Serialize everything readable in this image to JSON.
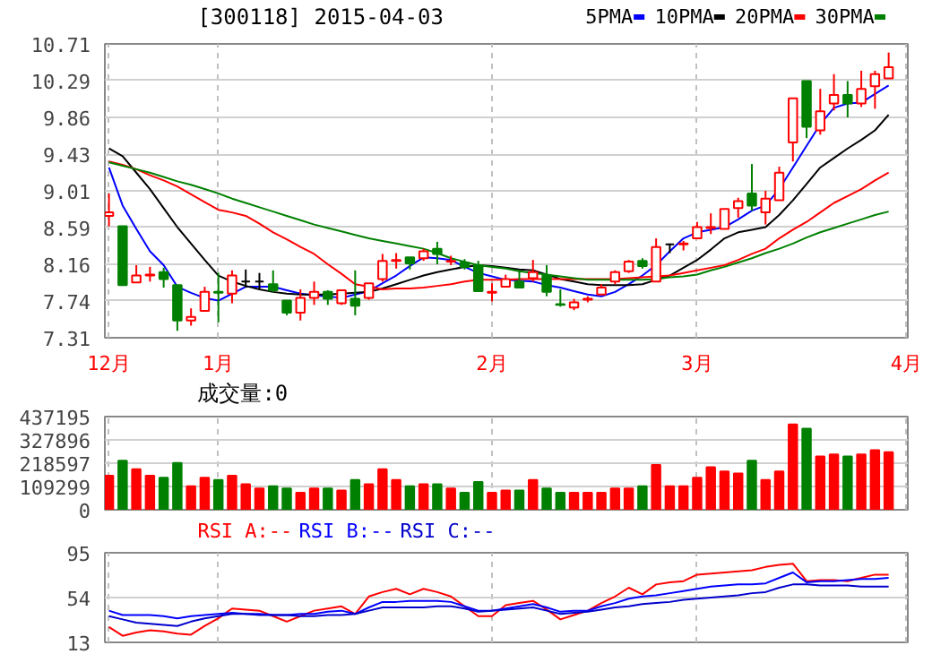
{
  "chart_data": [
    {
      "type": "candlestick",
      "title": "[300118] 2015-04-03",
      "legend": "top right",
      "grid": true,
      "annotations": [
        "4月"
      ],
      "categories": [
        "12月",
        null,
        null,
        null,
        null,
        null,
        null,
        null,
        "1月",
        null,
        null,
        null,
        null,
        null,
        null,
        null,
        null,
        null,
        null,
        null,
        null,
        null,
        null,
        null,
        null,
        null,
        null,
        null,
        "2月",
        null,
        null,
        null,
        null,
        null,
        null,
        null,
        null,
        null,
        null,
        null,
        null,
        null,
        null,
        "3月",
        null,
        null,
        null,
        null,
        null,
        null,
        null,
        null,
        null,
        null,
        null,
        null,
        null,
        null
      ],
      "ohlc": [
        [
          8.72,
          8.98,
          8.6,
          8.76
        ],
        [
          8.6,
          8.6,
          7.92,
          7.92
        ],
        [
          7.95,
          8.15,
          7.95,
          8.03
        ],
        [
          8.03,
          8.13,
          7.96,
          8.04
        ],
        [
          8.07,
          8.12,
          7.89,
          7.99
        ],
        [
          7.92,
          7.92,
          7.39,
          7.51
        ],
        [
          7.51,
          7.65,
          7.45,
          7.55
        ],
        [
          7.62,
          7.9,
          7.61,
          7.84
        ],
        [
          7.84,
          8.06,
          7.49,
          7.83
        ],
        [
          7.82,
          8.09,
          7.71,
          8.03
        ],
        [
          7.96,
          8.1,
          7.89,
          7.96
        ],
        [
          7.96,
          8.06,
          7.87,
          7.96
        ],
        [
          7.93,
          8.09,
          7.84,
          7.86
        ],
        [
          7.74,
          7.74,
          7.57,
          7.6
        ],
        [
          7.6,
          7.87,
          7.51,
          7.77
        ],
        [
          7.77,
          7.96,
          7.69,
          7.84
        ],
        [
          7.84,
          7.86,
          7.69,
          7.76
        ],
        [
          7.71,
          7.87,
          7.69,
          7.86
        ],
        [
          7.76,
          8.09,
          7.57,
          7.68
        ],
        [
          7.77,
          7.94,
          7.75,
          7.94
        ],
        [
          7.99,
          8.28,
          7.96,
          8.2
        ],
        [
          8.2,
          8.29,
          8.11,
          8.21
        ],
        [
          8.24,
          8.24,
          8.1,
          8.17
        ],
        [
          8.23,
          8.34,
          8.2,
          8.31
        ],
        [
          8.34,
          8.42,
          8.16,
          8.28
        ],
        [
          8.19,
          8.26,
          8.15,
          8.2
        ],
        [
          8.18,
          8.22,
          8.1,
          8.13
        ],
        [
          8.15,
          8.2,
          7.85,
          7.85
        ],
        [
          7.83,
          7.94,
          7.73,
          7.84
        ],
        [
          7.9,
          8.04,
          7.89,
          7.99
        ],
        [
          7.96,
          8.09,
          7.88,
          7.89
        ],
        [
          8.0,
          8.21,
          7.96,
          8.07
        ],
        [
          8.03,
          8.15,
          7.79,
          7.84
        ],
        [
          7.7,
          7.87,
          7.67,
          7.69
        ],
        [
          7.66,
          7.76,
          7.63,
          7.72
        ],
        [
          7.75,
          7.79,
          7.72,
          7.76
        ],
        [
          7.81,
          7.93,
          7.81,
          7.89
        ],
        [
          7.96,
          8.09,
          7.93,
          8.07
        ],
        [
          8.08,
          8.21,
          8.06,
          8.19
        ],
        [
          8.2,
          8.23,
          8.11,
          8.14
        ],
        [
          7.96,
          8.46,
          7.96,
          8.36
        ],
        [
          8.39,
          8.4,
          8.29,
          8.39
        ],
        [
          8.39,
          8.43,
          8.32,
          8.4
        ],
        [
          8.46,
          8.65,
          8.46,
          8.59
        ],
        [
          8.58,
          8.75,
          8.51,
          8.59
        ],
        [
          8.57,
          8.8,
          8.57,
          8.8
        ],
        [
          8.81,
          8.93,
          8.7,
          8.89
        ],
        [
          8.98,
          9.32,
          8.78,
          8.84
        ],
        [
          8.76,
          9.01,
          8.62,
          8.92
        ],
        [
          8.9,
          9.29,
          8.9,
          9.22
        ],
        [
          9.57,
          10.08,
          9.35,
          10.08
        ],
        [
          10.28,
          10.28,
          9.62,
          9.75
        ],
        [
          9.71,
          10.19,
          9.66,
          9.93
        ],
        [
          10.02,
          10.36,
          9.94,
          10.12
        ],
        [
          10.12,
          10.28,
          9.86,
          10.02
        ],
        [
          10.02,
          10.4,
          9.98,
          10.19
        ],
        [
          10.22,
          10.4,
          9.96,
          10.36
        ],
        [
          10.31,
          10.61,
          10.31,
          10.44
        ]
      ],
      "colors": [
        "#ff0000",
        "#008000",
        "#ff0000",
        "#ff0000",
        "#008000",
        "#008000",
        "#ff0000",
        "#ff0000",
        "#008000",
        "#ff0000",
        "#000000",
        "#000000",
        "#008000",
        "#008000",
        "#ff0000",
        "#ff0000",
        "#008000",
        "#ff0000",
        "#008000",
        "#ff0000",
        "#ff0000",
        "#ff0000",
        "#008000",
        "#ff0000",
        "#008000",
        "#ff0000",
        "#008000",
        "#008000",
        "#ff0000",
        "#ff0000",
        "#008000",
        "#ff0000",
        "#008000",
        "#008000",
        "#ff0000",
        "#ff0000",
        "#ff0000",
        "#ff0000",
        "#ff0000",
        "#008000",
        "#ff0000",
        "#000000",
        "#ff0000",
        "#ff0000",
        "#ff0000",
        "#ff0000",
        "#ff0000",
        "#008000",
        "#ff0000",
        "#ff0000",
        "#ff0000",
        "#008000",
        "#ff0000",
        "#ff0000",
        "#008000",
        "#ff0000",
        "#ff0000",
        "#ff0000"
      ],
      "series": [
        {
          "name": "5PMA",
          "color": "#0000ff",
          "type": "line",
          "values": [
            9.28,
            8.84,
            8.57,
            8.31,
            8.15,
            7.9,
            7.83,
            7.77,
            7.74,
            7.82,
            7.9,
            7.9,
            7.9,
            7.86,
            7.82,
            7.8,
            7.79,
            7.77,
            7.81,
            7.85,
            7.94,
            8.03,
            8.14,
            8.24,
            8.23,
            8.21,
            8.13,
            8.06,
            8.02,
            7.98,
            7.97,
            7.96,
            7.92,
            7.89,
            7.85,
            7.81,
            7.79,
            7.84,
            7.93,
            8.03,
            8.15,
            8.31,
            8.46,
            8.53,
            8.56,
            8.59,
            8.68,
            8.78,
            8.84,
            9.03,
            9.28,
            9.53,
            9.78,
            9.97,
            10.02,
            10.03,
            10.13,
            10.23
          ]
        },
        {
          "name": "10PMA",
          "color": "#000000",
          "type": "line",
          "values": [
            9.5,
            9.41,
            9.22,
            9.03,
            8.81,
            8.59,
            8.4,
            8.21,
            8.03,
            7.96,
            7.91,
            7.87,
            7.84,
            7.82,
            7.81,
            7.81,
            7.81,
            7.82,
            7.83,
            7.84,
            7.88,
            7.93,
            7.98,
            8.03,
            8.07,
            8.1,
            8.13,
            8.15,
            8.14,
            8.12,
            8.1,
            8.09,
            8.04,
            7.99,
            7.96,
            7.93,
            7.92,
            7.92,
            7.92,
            7.93,
            7.98,
            8.03,
            8.12,
            8.21,
            8.33,
            8.46,
            8.53,
            8.56,
            8.59,
            8.73,
            8.9,
            9.09,
            9.28,
            9.39,
            9.5,
            9.6,
            9.71,
            9.89
          ]
        },
        {
          "name": "20PMA",
          "color": "#ff0000",
          "type": "line",
          "values": [
            9.35,
            9.31,
            9.26,
            9.19,
            9.13,
            9.06,
            8.97,
            8.88,
            8.79,
            8.76,
            8.72,
            8.63,
            8.53,
            8.45,
            8.36,
            8.28,
            8.16,
            8.05,
            7.93,
            7.9,
            7.87,
            7.88,
            7.88,
            7.89,
            7.91,
            7.93,
            7.96,
            7.98,
            7.98,
            7.98,
            7.99,
            7.99,
            7.99,
            7.99,
            7.99,
            7.99,
            7.99,
            7.99,
            8.0,
            8.01,
            8.02,
            8.03,
            8.06,
            8.09,
            8.12,
            8.15,
            8.21,
            8.28,
            8.34,
            8.46,
            8.56,
            8.65,
            8.76,
            8.87,
            8.95,
            9.03,
            9.13,
            9.22
          ]
        },
        {
          "name": "30PMA",
          "color": "#008000",
          "type": "line",
          "values": [
            9.34,
            9.3,
            9.26,
            9.22,
            9.17,
            9.12,
            9.08,
            9.03,
            8.98,
            8.92,
            8.87,
            8.82,
            8.77,
            8.72,
            8.67,
            8.62,
            8.58,
            8.54,
            8.5,
            8.46,
            8.43,
            8.4,
            8.37,
            8.34,
            8.29,
            8.23,
            8.19,
            8.15,
            8.13,
            8.11,
            8.08,
            8.06,
            8.04,
            8.02,
            8.0,
            7.98,
            7.98,
            7.98,
            7.98,
            7.98,
            7.99,
            8.01,
            8.02,
            8.04,
            8.09,
            8.13,
            8.18,
            8.23,
            8.29,
            8.34,
            8.4,
            8.47,
            8.53,
            8.58,
            8.63,
            8.68,
            8.73,
            8.77
          ]
        }
      ],
      "ylim": [
        7.31,
        10.71
      ],
      "yticks": [
        7.31,
        7.74,
        8.16,
        8.59,
        9.01,
        9.43,
        9.86,
        10.29,
        10.71
      ]
    },
    {
      "type": "bar",
      "title": "成交量:0",
      "grid": true,
      "tick_labels": "y",
      "categories": [
        null,
        null,
        null,
        null,
        null,
        null,
        null,
        null,
        null,
        null,
        null,
        null,
        null,
        null,
        null,
        null,
        null,
        null,
        null,
        null,
        null,
        null,
        null,
        null,
        null,
        null,
        null,
        null,
        null,
        null,
        null,
        null,
        null,
        null,
        null,
        null,
        null,
        null,
        null,
        null,
        null,
        null,
        null,
        null,
        null,
        null,
        null,
        null,
        null,
        null,
        null,
        null,
        null,
        null,
        null,
        null,
        null,
        null
      ],
      "values": [
        160000,
        230000,
        190000,
        160000,
        150000,
        220000,
        110000,
        150000,
        140000,
        160000,
        120000,
        100000,
        110000,
        100000,
        80000,
        100000,
        100000,
        90000,
        140000,
        120000,
        190000,
        140000,
        110000,
        120000,
        120000,
        100000,
        80000,
        130000,
        80000,
        90000,
        90000,
        140000,
        100000,
        80000,
        80000,
        80000,
        80000,
        100000,
        100000,
        110000,
        210000,
        110000,
        110000,
        150000,
        200000,
        180000,
        170000,
        230000,
        140000,
        180000,
        400000,
        380000,
        250000,
        260000,
        250000,
        260000,
        280000,
        270000
      ],
      "colors": [
        "#ff0000",
        "#008000",
        "#ff0000",
        "#ff0000",
        "#008000",
        "#008000",
        "#ff0000",
        "#ff0000",
        "#008000",
        "#ff0000",
        "#ff0000",
        "#ff0000",
        "#008000",
        "#008000",
        "#ff0000",
        "#ff0000",
        "#008000",
        "#ff0000",
        "#008000",
        "#ff0000",
        "#ff0000",
        "#ff0000",
        "#008000",
        "#ff0000",
        "#008000",
        "#ff0000",
        "#008000",
        "#008000",
        "#ff0000",
        "#ff0000",
        "#008000",
        "#ff0000",
        "#008000",
        "#008000",
        "#ff0000",
        "#ff0000",
        "#ff0000",
        "#ff0000",
        "#ff0000",
        "#008000",
        "#ff0000",
        "#ff0000",
        "#ff0000",
        "#ff0000",
        "#ff0000",
        "#ff0000",
        "#ff0000",
        "#008000",
        "#ff0000",
        "#ff0000",
        "#ff0000",
        "#008000",
        "#ff0000",
        "#ff0000",
        "#008000",
        "#ff0000",
        "#ff0000",
        "#ff0000"
      ],
      "ylim": [
        0,
        437195
      ],
      "yticks": [
        0,
        109299,
        218597,
        327896,
        437195
      ]
    },
    {
      "type": "line",
      "legend": "top left",
      "grid": "x",
      "tick_labels": "y",
      "categories": [
        null,
        null,
        null,
        null,
        null,
        null,
        null,
        null,
        null,
        null,
        null,
        null,
        null,
        null,
        null,
        null,
        null,
        null,
        null,
        null,
        null,
        null,
        null,
        null,
        null,
        null,
        null,
        null,
        null,
        null,
        null,
        null,
        null,
        null,
        null,
        null,
        null,
        null,
        null,
        null,
        null,
        null,
        null,
        null,
        null,
        null,
        null,
        null,
        null,
        null,
        null,
        null,
        null,
        null,
        null,
        null,
        null,
        null
      ],
      "series": [
        {
          "name": "RSI_A:--",
          "color": "#ff0000",
          "values": [
            27,
            19,
            22,
            24,
            23,
            21,
            20,
            28,
            35,
            44,
            43,
            42,
            37,
            32,
            37,
            42,
            44,
            46,
            39,
            55,
            59,
            62,
            57,
            62,
            59,
            55,
            46,
            37,
            37,
            47,
            49,
            51,
            43,
            34,
            38,
            42,
            49,
            55,
            63,
            57,
            66,
            68,
            69,
            75,
            76,
            77,
            78,
            79,
            82,
            84,
            85,
            69,
            70,
            70,
            69,
            72,
            75,
            75
          ]
        },
        {
          "name": "RSI_B:--",
          "color": "#0000ff",
          "values": [
            42,
            38,
            38,
            38,
            37,
            35,
            37,
            38,
            39,
            40,
            39,
            39,
            38,
            38,
            39,
            39,
            41,
            42,
            39,
            45,
            50,
            50,
            51,
            51,
            51,
            50,
            46,
            42,
            42,
            44,
            46,
            48,
            45,
            41,
            42,
            42,
            46,
            49,
            53,
            55,
            56,
            58,
            60,
            62,
            64,
            65,
            66,
            66,
            67,
            72,
            77,
            68,
            69,
            69,
            70,
            71,
            71,
            72
          ]
        },
        {
          "name": "RSI_C:--",
          "color": "#0000cc",
          "values": [
            37,
            34,
            31,
            30,
            29,
            28,
            32,
            35,
            37,
            39,
            39,
            38,
            38,
            38,
            37,
            37,
            38,
            38,
            39,
            42,
            45,
            45,
            45,
            45,
            46,
            46,
            44,
            41,
            42,
            43,
            44,
            45,
            42,
            39,
            40,
            41,
            43,
            45,
            46,
            48,
            49,
            50,
            52,
            53,
            54,
            55,
            56,
            58,
            59,
            63,
            66,
            66,
            65,
            65,
            65,
            64,
            64,
            64
          ]
        }
      ],
      "ylim": [
        13,
        95
      ],
      "yticks": [
        13,
        54,
        95
      ],
      "ref_lines": [
        {
          "axis": "y",
          "value": 54,
          "color": "#d0d0d0"
        }
      ]
    }
  ]
}
